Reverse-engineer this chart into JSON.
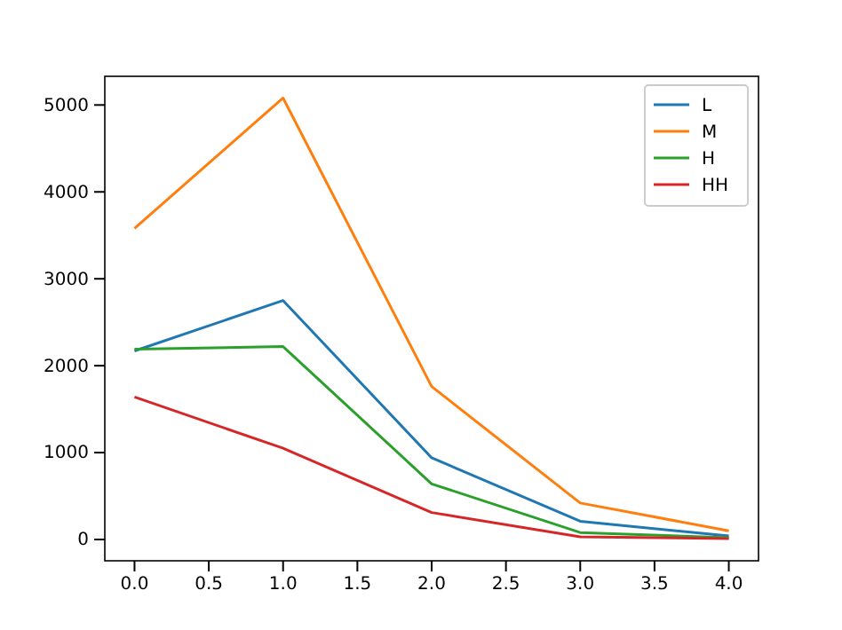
{
  "chart_data": {
    "type": "line",
    "x": [
      0,
      1,
      2,
      3,
      4
    ],
    "series": [
      {
        "name": "L",
        "color": "#1f77b4",
        "values": [
          2170,
          2750,
          940,
          210,
          40
        ]
      },
      {
        "name": "M",
        "color": "#ff7f0e",
        "values": [
          3580,
          5080,
          1760,
          420,
          100
        ]
      },
      {
        "name": "H",
        "color": "#2ca02c",
        "values": [
          2190,
          2220,
          640,
          80,
          20
        ]
      },
      {
        "name": "HH",
        "color": "#d62728",
        "values": [
          1640,
          1050,
          310,
          30,
          10
        ]
      }
    ],
    "xlim": [
      -0.2,
      4.2
    ],
    "xticks": [
      {
        "value": 0,
        "label": "0.0"
      },
      {
        "value": 0.5,
        "label": "0.5"
      },
      {
        "value": 1,
        "label": "1.0"
      },
      {
        "value": 1.5,
        "label": "1.5"
      },
      {
        "value": 2,
        "label": "2.0"
      },
      {
        "value": 2.5,
        "label": "2.5"
      },
      {
        "value": 3,
        "label": "3.0"
      },
      {
        "value": 3.5,
        "label": "3.5"
      },
      {
        "value": 4,
        "label": "4.0"
      }
    ],
    "ylim": [
      -245,
      5330
    ],
    "yticks": [
      0,
      1000,
      2000,
      3000,
      4000,
      5000
    ],
    "legend": "top right",
    "grid": false,
    "marker": "none",
    "line_style": "solid"
  }
}
